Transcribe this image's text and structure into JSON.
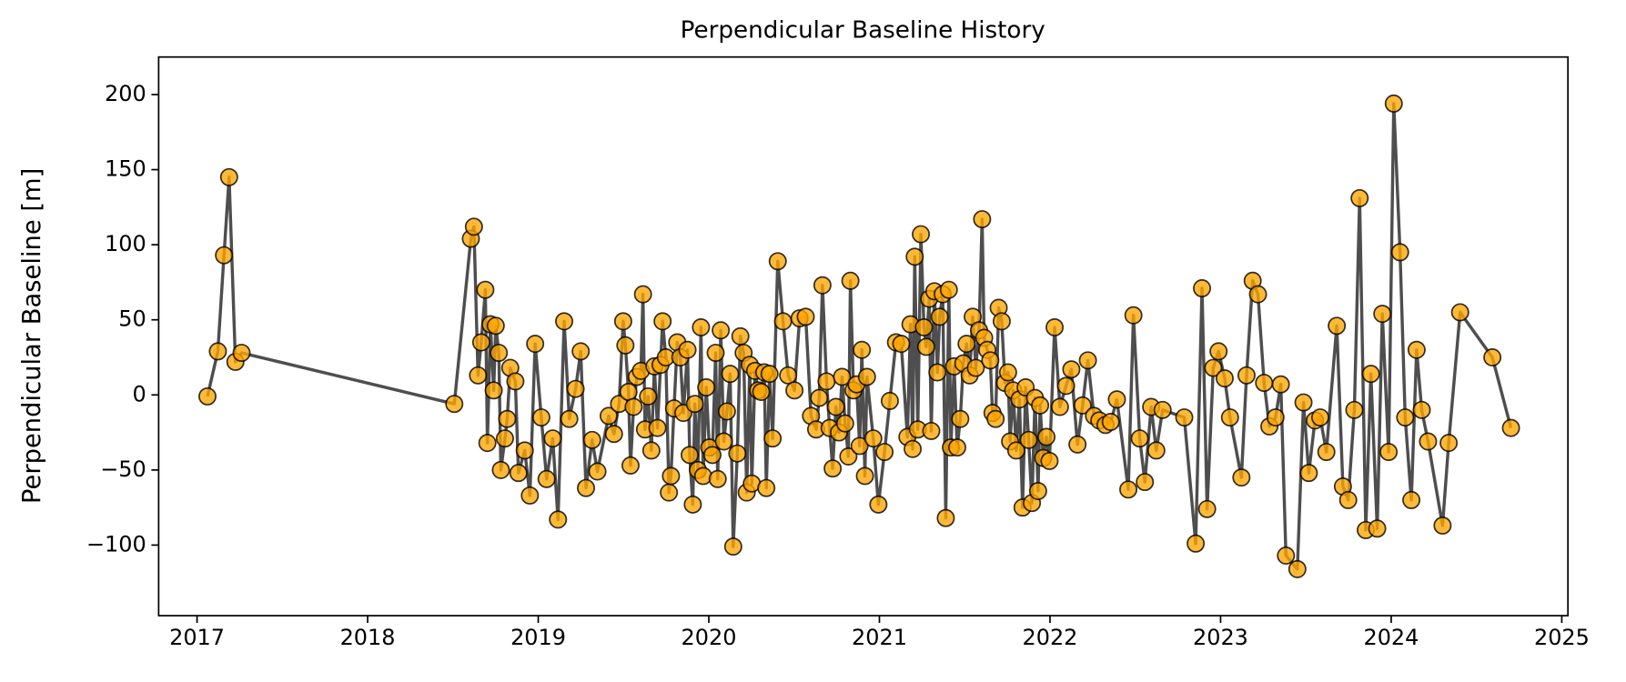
{
  "chart_data": {
    "type": "line",
    "title": "Perpendicular Baseline History",
    "ylabel": "Perpendicular Baseline [m]",
    "color": "#ffa500",
    "edge_color": "#000000",
    "line_color": "#444444",
    "xlim": [
      2016.775,
      2025.036
    ],
    "xticks": [
      2017,
      2018,
      2019,
      2020,
      2021,
      2022,
      2023,
      2024,
      2025
    ],
    "ylim": [
      -147,
      225
    ],
    "yticks": [
      {
        "value": -100,
        "label": "−100"
      },
      {
        "value": -50,
        "label": "−50"
      },
      0,
      50,
      100,
      150,
      200
    ],
    "x": [
      2017.061,
      2017.122,
      2017.158,
      2017.188,
      2017.225,
      2017.261,
      2018.508,
      2018.605,
      2018.623,
      2018.647,
      2018.666,
      2018.69,
      2018.702,
      2018.72,
      2018.739,
      2018.751,
      2018.769,
      2018.781,
      2018.805,
      2018.818,
      2018.836,
      2018.866,
      2018.884,
      2018.921,
      2018.951,
      2018.982,
      2019.018,
      2019.049,
      2019.085,
      2019.116,
      2019.152,
      2019.182,
      2019.219,
      2019.249,
      2019.28,
      2019.316,
      2019.347,
      2019.413,
      2019.444,
      2019.474,
      2019.498,
      2019.511,
      2019.529,
      2019.541,
      2019.559,
      2019.578,
      2019.602,
      2019.614,
      2019.626,
      2019.644,
      2019.663,
      2019.681,
      2019.699,
      2019.717,
      2019.729,
      2019.748,
      2019.766,
      2019.778,
      2019.796,
      2019.815,
      2019.833,
      2019.851,
      2019.875,
      2019.888,
      2019.906,
      2019.918,
      2019.936,
      2019.954,
      2019.967,
      2019.985,
      2020.003,
      2020.021,
      2020.04,
      2020.052,
      2020.07,
      2020.088,
      2020.106,
      2020.125,
      2020.143,
      2020.167,
      2020.185,
      2020.204,
      2020.222,
      2020.24,
      2020.252,
      2020.271,
      2020.289,
      2020.307,
      2020.325,
      2020.337,
      2020.356,
      2020.374,
      2020.404,
      2020.435,
      2020.465,
      2020.502,
      2020.532,
      2020.568,
      2020.599,
      2020.629,
      2020.647,
      2020.666,
      2020.69,
      2020.708,
      2020.726,
      2020.745,
      2020.763,
      2020.781,
      2020.799,
      2020.818,
      2020.83,
      2020.848,
      2020.866,
      2020.884,
      2020.897,
      2020.915,
      2020.927,
      2020.964,
      2020.994,
      2021.03,
      2021.061,
      2021.097,
      2021.128,
      2021.164,
      2021.182,
      2021.195,
      2021.207,
      2021.225,
      2021.243,
      2021.261,
      2021.274,
      2021.292,
      2021.304,
      2021.322,
      2021.34,
      2021.353,
      2021.371,
      2021.389,
      2021.407,
      2021.419,
      2021.438,
      2021.456,
      2021.474,
      2021.492,
      2021.511,
      2021.529,
      2021.547,
      2021.565,
      2021.584,
      2021.602,
      2021.614,
      2021.632,
      2021.65,
      2021.663,
      2021.681,
      2021.699,
      2021.717,
      2021.736,
      2021.754,
      2021.766,
      2021.784,
      2021.802,
      2021.821,
      2021.839,
      2021.857,
      2021.875,
      2021.894,
      2021.912,
      2021.93,
      2021.942,
      2021.96,
      2021.979,
      2021.997,
      2022.027,
      2022.058,
      2022.094,
      2022.125,
      2022.161,
      2022.191,
      2022.222,
      2022.258,
      2022.289,
      2022.325,
      2022.356,
      2022.392,
      2022.459,
      2022.489,
      2022.526,
      2022.556,
      2022.593,
      2022.623,
      2022.66,
      2022.787,
      2022.854,
      2022.891,
      2022.921,
      2022.957,
      2022.988,
      2023.024,
      2023.055,
      2023.122,
      2023.152,
      2023.188,
      2023.219,
      2023.255,
      2023.286,
      2023.322,
      2023.353,
      2023.383,
      2023.45,
      2023.486,
      2023.517,
      2023.553,
      2023.584,
      2023.62,
      2023.681,
      2023.717,
      2023.748,
      2023.784,
      2023.815,
      2023.851,
      2023.881,
      2023.918,
      2023.948,
      2023.985,
      2024.015,
      2024.052,
      2024.082,
      2024.118,
      2024.149,
      2024.179,
      2024.216,
      2024.301,
      2024.337,
      2024.404,
      2024.593,
      2024.702
    ],
    "values": [
      -1,
      29,
      93,
      145,
      22,
      28,
      -6,
      104,
      112,
      13,
      35,
      70,
      -32,
      47,
      3,
      46,
      28,
      -50,
      -29,
      -16,
      18,
      9,
      -52,
      -37,
      -67,
      34,
      -15,
      -56,
      -29,
      -83,
      49,
      -16,
      4,
      29,
      -62,
      -30,
      -51,
      -14,
      -26,
      -6,
      49,
      33,
      2,
      -47,
      -8,
      12,
      16,
      67,
      -23,
      -1,
      -37,
      19,
      -22,
      20,
      49,
      25,
      -65,
      -54,
      -9,
      35,
      25,
      -12,
      30,
      -40,
      -73,
      -6,
      -50,
      45,
      -54,
      5,
      -35,
      -40,
      28,
      -56,
      43,
      -31,
      -11,
      14,
      -101,
      -39,
      39,
      28,
      -65,
      20,
      -59,
      16,
      3,
      2,
      15,
      -62,
      14,
      -29,
      89,
      49,
      13,
      3,
      51,
      52,
      -14,
      -23,
      -2,
      73,
      9,
      -22,
      -49,
      -8,
      -25,
      12,
      -19,
      -41,
      76,
      3,
      7,
      -34,
      30,
      -54,
      12,
      -29,
      -73,
      -38,
      -4,
      35,
      34,
      -28,
      47,
      -36,
      92,
      -23,
      107,
      45,
      32,
      64,
      -24,
      69,
      15,
      52,
      67,
      -82,
      70,
      -35,
      19,
      -35,
      -16,
      21,
      34,
      13,
      52,
      18,
      43,
      117,
      38,
      30,
      23,
      -12,
      -16,
      58,
      49,
      8,
      15,
      -31,
      3,
      -37,
      -3,
      -75,
      5,
      -30,
      -72,
      -2,
      -64,
      -7,
      -42,
      -28,
      -44,
      45,
      -8,
      6,
      17,
      -33,
      -7,
      23,
      -14,
      -17,
      -20,
      -18,
      -3,
      -63,
      53,
      -29,
      -58,
      -8,
      -37,
      -10,
      -15,
      -99,
      71,
      -76,
      18,
      29,
      11,
      -15,
      -55,
      13,
      76,
      67,
      8,
      -21,
      -15,
      7,
      -107,
      -116,
      -5,
      -52,
      -17,
      -15,
      -38,
      46,
      -61,
      -70,
      -10,
      131,
      -90,
      14,
      -89,
      54,
      -38,
      194,
      95,
      -15,
      -70,
      30,
      -10,
      -31,
      -87,
      -32,
      55,
      25,
      -22
    ]
  }
}
